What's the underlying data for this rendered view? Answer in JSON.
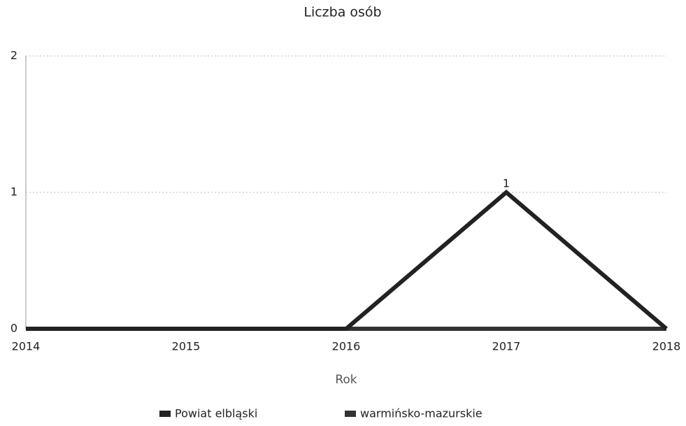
{
  "chart_data": {
    "type": "line",
    "title": "Liczba osób",
    "x_label": "Rok",
    "categories": [
      "2014",
      "2015",
      "2016",
      "2017",
      "2018"
    ],
    "series": [
      {
        "name": "Powiat elbląski",
        "color": "#222222",
        "values": [
          0,
          0,
          0,
          1,
          0
        ]
      },
      {
        "name": "warmińsko-mazurskie",
        "color": "#333333",
        "values": [
          0,
          0,
          0,
          0,
          0
        ]
      }
    ],
    "ylim": [
      0,
      2
    ],
    "yticks": [
      0,
      1,
      2
    ],
    "grid": true,
    "legend": "bottom"
  }
}
